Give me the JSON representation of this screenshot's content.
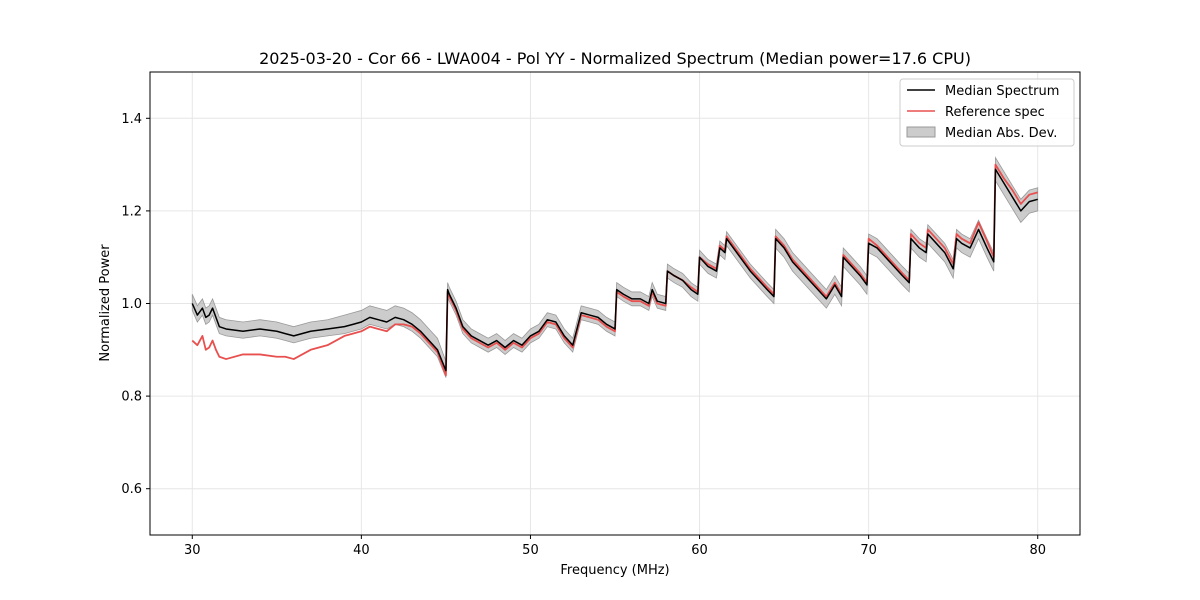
{
  "chart_data": {
    "type": "line",
    "title": "2025-03-20 - Cor 66 - LWA004 - Pol YY - Normalized Spectrum (Median power=17.6 CPU)",
    "xlabel": "Frequency (MHz)",
    "ylabel": "Normalized Power",
    "xlim": [
      27.5,
      82.5
    ],
    "ylim": [
      0.5,
      1.5
    ],
    "xticks": [
      30,
      40,
      50,
      60,
      70,
      80
    ],
    "yticks": [
      0.6,
      0.8,
      1.0,
      1.2,
      1.4
    ],
    "xtick_labels": [
      "30",
      "40",
      "50",
      "60",
      "70",
      "80"
    ],
    "ytick_labels": [
      "0.6",
      "0.8",
      "1.0",
      "1.2",
      "1.4"
    ],
    "grid": true,
    "legend_position": "top-right",
    "colors": {
      "median": "#000000",
      "reference": "#e8504f",
      "mad": "#b0b0b0"
    },
    "series": [
      {
        "name": "Median Spectrum",
        "x": [
          30.0,
          30.3,
          30.6,
          30.8,
          31.0,
          31.2,
          31.4,
          31.6,
          32.0,
          33.0,
          34.0,
          35.0,
          35.5,
          36.0,
          37.0,
          38.0,
          39.0,
          39.5,
          40.0,
          40.5,
          41.0,
          41.5,
          42.0,
          42.5,
          43.0,
          43.5,
          44.0,
          44.5,
          45.0,
          45.1,
          45.2,
          45.6,
          46.0,
          46.5,
          47.0,
          47.5,
          48.0,
          48.5,
          49.0,
          49.5,
          50.0,
          50.5,
          51.0,
          51.5,
          52.0,
          52.5,
          53.0,
          53.5,
          54.0,
          54.5,
          55.0,
          55.1,
          55.5,
          56.0,
          56.5,
          57.0,
          57.2,
          57.5,
          58.0,
          58.1,
          58.5,
          59.0,
          59.5,
          59.9,
          60.0,
          60.5,
          61.0,
          61.2,
          61.5,
          61.6,
          62.0,
          63.0,
          64.0,
          64.4,
          64.5,
          65.0,
          65.5,
          66.0,
          66.5,
          67.0,
          67.5,
          68.0,
          68.4,
          68.5,
          69.0,
          69.5,
          69.9,
          70.0,
          70.5,
          71.0,
          71.5,
          72.0,
          72.4,
          72.5,
          73.0,
          73.4,
          73.5,
          74.0,
          74.5,
          75.0,
          75.2,
          75.5,
          76.0,
          76.5,
          77.0,
          77.4,
          77.5,
          78.0,
          78.5,
          79.0,
          79.5,
          80.0
        ],
        "y": [
          1.0,
          0.975,
          0.99,
          0.97,
          0.975,
          0.99,
          0.97,
          0.95,
          0.945,
          0.94,
          0.945,
          0.94,
          0.935,
          0.93,
          0.94,
          0.945,
          0.95,
          0.955,
          0.96,
          0.97,
          0.965,
          0.96,
          0.97,
          0.965,
          0.955,
          0.94,
          0.92,
          0.9,
          0.855,
          1.03,
          1.02,
          0.99,
          0.95,
          0.93,
          0.92,
          0.91,
          0.92,
          0.905,
          0.92,
          0.91,
          0.93,
          0.94,
          0.965,
          0.96,
          0.93,
          0.91,
          0.98,
          0.975,
          0.97,
          0.955,
          0.945,
          1.03,
          1.02,
          1.01,
          1.01,
          1.0,
          1.03,
          1.005,
          1.0,
          1.07,
          1.06,
          1.05,
          1.03,
          1.02,
          1.1,
          1.08,
          1.07,
          1.12,
          1.11,
          1.14,
          1.12,
          1.07,
          1.03,
          1.015,
          1.14,
          1.12,
          1.09,
          1.07,
          1.05,
          1.03,
          1.01,
          1.04,
          1.015,
          1.1,
          1.08,
          1.06,
          1.04,
          1.13,
          1.12,
          1.1,
          1.08,
          1.06,
          1.045,
          1.14,
          1.12,
          1.11,
          1.15,
          1.13,
          1.11,
          1.075,
          1.14,
          1.13,
          1.12,
          1.16,
          1.12,
          1.09,
          1.29,
          1.26,
          1.23,
          1.2,
          1.22,
          1.225
        ]
      },
      {
        "name": "Reference spec",
        "x": [
          30.0,
          30.3,
          30.6,
          30.8,
          31.0,
          31.2,
          31.4,
          31.6,
          32.0,
          33.0,
          34.0,
          35.0,
          35.5,
          36.0,
          37.0,
          38.0,
          39.0,
          39.5,
          40.0,
          40.5,
          41.0,
          41.5,
          42.0,
          42.5,
          43.0,
          43.5,
          44.0,
          44.5,
          45.0,
          45.1,
          45.2,
          45.6,
          46.0,
          46.5,
          47.0,
          47.5,
          48.0,
          48.5,
          49.0,
          49.5,
          50.0,
          50.5,
          51.0,
          51.5,
          52.0,
          52.5,
          53.0,
          53.5,
          54.0,
          54.5,
          55.0,
          55.1,
          55.5,
          56.0,
          56.5,
          57.0,
          57.2,
          57.5,
          58.0,
          58.1,
          58.5,
          59.0,
          59.5,
          59.9,
          60.0,
          60.5,
          61.0,
          61.2,
          61.5,
          61.6,
          62.0,
          63.0,
          64.0,
          64.4,
          64.5,
          65.0,
          65.5,
          66.0,
          66.5,
          67.0,
          67.5,
          68.0,
          68.4,
          68.5,
          69.0,
          69.5,
          69.9,
          70.0,
          70.5,
          71.0,
          71.5,
          72.0,
          72.4,
          72.5,
          73.0,
          73.4,
          73.5,
          74.0,
          74.5,
          75.0,
          75.2,
          75.5,
          76.0,
          76.5,
          77.0,
          77.4,
          77.5,
          78.0,
          78.5,
          79.0,
          79.5,
          80.0
        ],
        "y": [
          0.92,
          0.91,
          0.93,
          0.9,
          0.905,
          0.92,
          0.9,
          0.885,
          0.88,
          0.89,
          0.89,
          0.885,
          0.885,
          0.88,
          0.9,
          0.91,
          0.93,
          0.935,
          0.94,
          0.95,
          0.945,
          0.94,
          0.955,
          0.955,
          0.95,
          0.935,
          0.915,
          0.895,
          0.845,
          1.025,
          1.015,
          0.985,
          0.945,
          0.925,
          0.915,
          0.905,
          0.915,
          0.9,
          0.915,
          0.905,
          0.925,
          0.935,
          0.96,
          0.955,
          0.925,
          0.905,
          0.975,
          0.97,
          0.965,
          0.95,
          0.94,
          1.025,
          1.015,
          1.005,
          1.005,
          0.995,
          1.025,
          1.0,
          0.995,
          1.07,
          1.06,
          1.05,
          1.035,
          1.025,
          1.1,
          1.085,
          1.075,
          1.125,
          1.115,
          1.145,
          1.125,
          1.075,
          1.035,
          1.02,
          1.145,
          1.125,
          1.095,
          1.075,
          1.055,
          1.035,
          1.015,
          1.045,
          1.02,
          1.105,
          1.085,
          1.065,
          1.045,
          1.14,
          1.125,
          1.105,
          1.085,
          1.065,
          1.05,
          1.15,
          1.13,
          1.12,
          1.16,
          1.14,
          1.12,
          1.085,
          1.15,
          1.14,
          1.13,
          1.175,
          1.135,
          1.1,
          1.3,
          1.27,
          1.245,
          1.215,
          1.235,
          1.24
        ]
      },
      {
        "name": "Median Abs. Dev.",
        "x": [
          30.0,
          30.3,
          30.6,
          30.8,
          31.0,
          31.2,
          31.4,
          31.6,
          32.0,
          33.0,
          34.0,
          35.0,
          35.5,
          36.0,
          37.0,
          38.0,
          39.0,
          39.5,
          40.0,
          40.5,
          41.0,
          41.5,
          42.0,
          42.5,
          43.0,
          43.5,
          44.0,
          44.5,
          45.0,
          45.1,
          45.2,
          45.6,
          46.0,
          46.5,
          47.0,
          47.5,
          48.0,
          48.5,
          49.0,
          49.5,
          50.0,
          50.5,
          51.0,
          51.5,
          52.0,
          52.5,
          53.0,
          53.5,
          54.0,
          54.5,
          55.0,
          55.1,
          55.5,
          56.0,
          56.5,
          57.0,
          57.2,
          57.5,
          58.0,
          58.1,
          58.5,
          59.0,
          59.5,
          59.9,
          60.0,
          60.5,
          61.0,
          61.2,
          61.5,
          61.6,
          62.0,
          63.0,
          64.0,
          64.4,
          64.5,
          65.0,
          65.5,
          66.0,
          66.5,
          67.0,
          67.5,
          68.0,
          68.4,
          68.5,
          69.0,
          69.5,
          69.9,
          70.0,
          70.5,
          71.0,
          71.5,
          72.0,
          72.4,
          72.5,
          73.0,
          73.4,
          73.5,
          74.0,
          74.5,
          75.0,
          75.2,
          75.5,
          76.0,
          76.5,
          77.0,
          77.4,
          77.5,
          78.0,
          78.5,
          79.0,
          79.5,
          80.0
        ],
        "lower": [
          0.985,
          0.96,
          0.975,
          0.955,
          0.96,
          0.975,
          0.955,
          0.935,
          0.93,
          0.925,
          0.93,
          0.925,
          0.92,
          0.915,
          0.925,
          0.93,
          0.935,
          0.94,
          0.945,
          0.955,
          0.95,
          0.945,
          0.955,
          0.95,
          0.94,
          0.925,
          0.905,
          0.885,
          0.84,
          1.015,
          1.005,
          0.975,
          0.935,
          0.915,
          0.905,
          0.895,
          0.905,
          0.89,
          0.905,
          0.895,
          0.915,
          0.925,
          0.95,
          0.945,
          0.915,
          0.895,
          0.965,
          0.96,
          0.955,
          0.94,
          0.93,
          1.015,
          1.005,
          0.995,
          0.995,
          0.985,
          1.015,
          0.99,
          0.985,
          1.055,
          1.045,
          1.035,
          1.015,
          1.005,
          1.085,
          1.065,
          1.055,
          1.105,
          1.095,
          1.125,
          1.105,
          1.055,
          1.015,
          1.0,
          1.12,
          1.1,
          1.07,
          1.05,
          1.03,
          1.01,
          0.99,
          1.02,
          0.995,
          1.08,
          1.06,
          1.04,
          1.02,
          1.11,
          1.1,
          1.08,
          1.06,
          1.04,
          1.025,
          1.12,
          1.1,
          1.09,
          1.13,
          1.11,
          1.09,
          1.055,
          1.12,
          1.11,
          1.1,
          1.14,
          1.1,
          1.07,
          1.265,
          1.235,
          1.205,
          1.175,
          1.195,
          1.2
        ],
        "upper": [
          1.02,
          0.995,
          1.01,
          0.99,
          0.995,
          1.01,
          0.99,
          0.97,
          0.965,
          0.96,
          0.965,
          0.96,
          0.955,
          0.95,
          0.96,
          0.965,
          0.975,
          0.98,
          0.985,
          0.995,
          0.99,
          0.985,
          0.995,
          0.99,
          0.98,
          0.965,
          0.945,
          0.925,
          0.875,
          1.045,
          1.035,
          1.005,
          0.965,
          0.945,
          0.935,
          0.925,
          0.935,
          0.92,
          0.935,
          0.925,
          0.945,
          0.955,
          0.98,
          0.975,
          0.945,
          0.925,
          0.995,
          0.99,
          0.985,
          0.97,
          0.96,
          1.045,
          1.035,
          1.025,
          1.025,
          1.015,
          1.045,
          1.02,
          1.015,
          1.085,
          1.075,
          1.065,
          1.045,
          1.035,
          1.115,
          1.095,
          1.085,
          1.135,
          1.125,
          1.155,
          1.135,
          1.085,
          1.045,
          1.03,
          1.16,
          1.14,
          1.11,
          1.09,
          1.07,
          1.05,
          1.03,
          1.06,
          1.035,
          1.12,
          1.1,
          1.08,
          1.06,
          1.15,
          1.14,
          1.12,
          1.1,
          1.08,
          1.065,
          1.16,
          1.14,
          1.13,
          1.17,
          1.15,
          1.13,
          1.095,
          1.16,
          1.15,
          1.14,
          1.18,
          1.14,
          1.11,
          1.315,
          1.285,
          1.255,
          1.225,
          1.245,
          1.25
        ]
      }
    ]
  },
  "legend": {
    "items": [
      "Median Spectrum",
      "Reference spec",
      "Median Abs. Dev."
    ]
  }
}
